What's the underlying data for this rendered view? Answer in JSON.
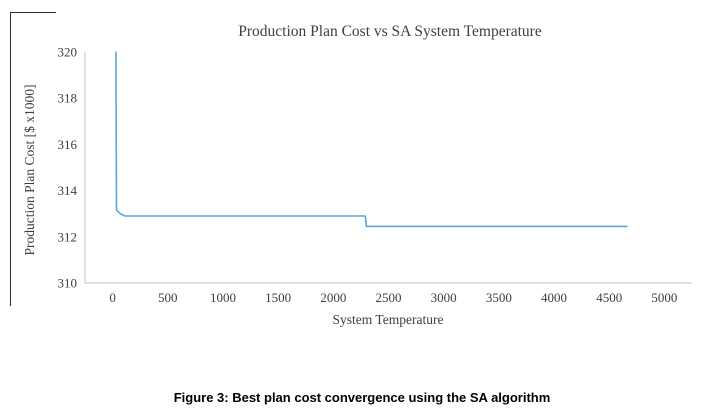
{
  "figure": {
    "caption": "Figure 3: Best plan cost convergence using the SA algorithm"
  },
  "chart_data": {
    "type": "line",
    "title": "Production Plan Cost vs SA System Temperature",
    "xlabel": "System Temperature",
    "ylabel": "Production Plan Cost [$ x1000]",
    "xlim": [
      -250,
      5250
    ],
    "ylim": [
      310,
      320
    ],
    "x_ticks": [
      0,
      500,
      1000,
      1500,
      2000,
      2500,
      3000,
      3500,
      4000,
      4500,
      5000
    ],
    "y_ticks": [
      310,
      312,
      314,
      316,
      318,
      320
    ],
    "grid": false,
    "legend": "none",
    "colors": {
      "line": "#5BA7DC",
      "axis": "#BFBFBF",
      "text": "#3F3F3F"
    },
    "series": [
      {
        "name": "Best plan cost",
        "points": [
          [
            30,
            320.0
          ],
          [
            35,
            313.15
          ],
          [
            70,
            313.0
          ],
          [
            110,
            312.9
          ],
          [
            2290,
            312.9
          ],
          [
            2300,
            312.45
          ],
          [
            4660,
            312.45
          ]
        ]
      }
    ]
  }
}
